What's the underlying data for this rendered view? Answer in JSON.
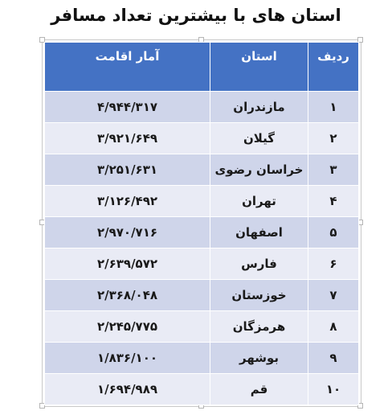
{
  "title": "استان های با بیشترین تعداد مسافر",
  "table": {
    "headers": {
      "rank": "ردیف",
      "province": "استان",
      "stat": "آمار اقامت"
    },
    "rows": [
      {
        "rank": "۱",
        "province": "مازندران",
        "stat": "۴/۹۴۴/۳۱۷"
      },
      {
        "rank": "۲",
        "province": "گیلان",
        "stat": "۳/۹۲۱/۶۴۹"
      },
      {
        "rank": "۳",
        "province": "خراسان رضوی",
        "stat": "۳/۲۵۱/۶۳۱"
      },
      {
        "rank": "۴",
        "province": "تهران",
        "stat": "۳/۱۲۶/۴۹۲"
      },
      {
        "rank": "۵",
        "province": "اصفهان",
        "stat": "۲/۹۷۰/۷۱۶"
      },
      {
        "rank": "۶",
        "province": "فارس",
        "stat": "۲/۶۳۹/۵۷۲"
      },
      {
        "rank": "۷",
        "province": "خوزستان",
        "stat": "۲/۳۶۸/۰۴۸"
      },
      {
        "rank": "۸",
        "province": "هرمزگان",
        "stat": "۲/۲۴۵/۷۷۵"
      },
      {
        "rank": "۹",
        "province": "بوشهر",
        "stat": "۱/۸۳۶/۱۰۰"
      },
      {
        "rank": "۱۰",
        "province": "قم",
        "stat": "۱/۶۹۴/۹۸۹"
      }
    ]
  },
  "colors": {
    "header_bg": "#4472c4",
    "row_band_dark": "#cfd5ea",
    "row_band_light": "#e9ebf5"
  }
}
